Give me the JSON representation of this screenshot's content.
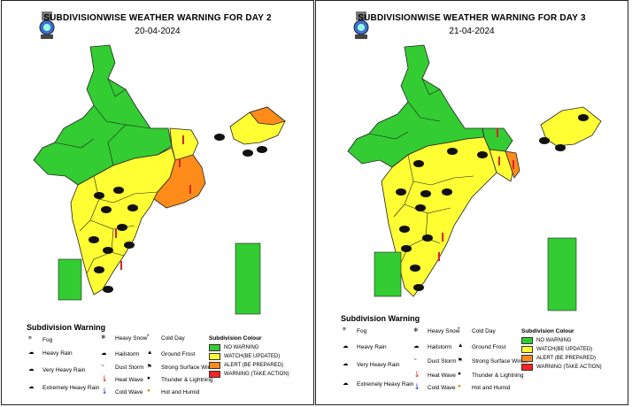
{
  "colors": {
    "no_warning": "#33cc33",
    "watch": "#ffff33",
    "alert": "#ff8c1a",
    "warning": "#ff2222"
  },
  "panels": [
    {
      "title": "SUBDIVISIONWISE WEATHER WARNING FOR DAY 2",
      "date": "20-04-2024"
    },
    {
      "title": "SUBDIVISIONWISE WEATHER WARNING FOR DAY 3",
      "date": "21-04-2024"
    }
  ],
  "legend": {
    "heading": "Subdivision Warning",
    "phenomena": [
      {
        "label": "Fog",
        "icon": "fog-icon"
      },
      {
        "label": "Heavy Rain",
        "icon": "heavy-rain-icon"
      },
      {
        "label": "Very Heavy Rain",
        "icon": "very-heavy-rain-icon"
      },
      {
        "label": "Extremely Heavy Rain",
        "icon": "extremely-heavy-rain-icon"
      },
      {
        "label": "Heavy Snow",
        "icon": "heavy-snow-icon"
      },
      {
        "label": "Hailstorm",
        "icon": "hailstorm-icon"
      },
      {
        "label": "Dust Storm",
        "icon": "dust-storm-icon"
      },
      {
        "label": "Heat Wave",
        "icon": "heat-wave-icon"
      },
      {
        "label": "Cold Wave",
        "icon": "cold-wave-icon"
      },
      {
        "label": "Cold Day",
        "icon": "cold-day-icon"
      },
      {
        "label": "Ground Frost",
        "icon": "ground-frost-icon"
      },
      {
        "label": "Strong Surface Winds",
        "icon": "wind-icon"
      },
      {
        "label": "Thunder & Lightning",
        "icon": "thunder-icon"
      },
      {
        "label": "Hot and Humid",
        "icon": "hot-humid-icon"
      }
    ],
    "colour_heading": "Subdivision Colour",
    "colour_keys": [
      {
        "label": "NO WARNING",
        "color": "#33cc33"
      },
      {
        "label": "WATCH(BE UPDATED)",
        "color": "#ffff33"
      },
      {
        "label": "ALERT (BE PREPARED)",
        "color": "#ff8c1a"
      },
      {
        "label": "WARNING (TAKE ACTION)",
        "color": "#ff2222"
      }
    ]
  }
}
